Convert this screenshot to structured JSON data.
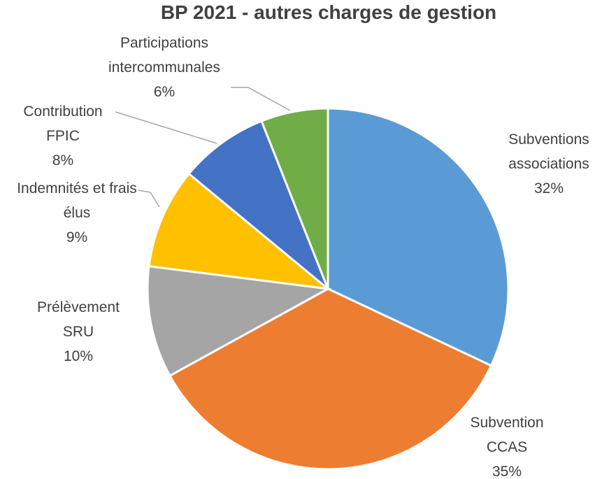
{
  "chart_data": {
    "type": "pie",
    "title": "BP 2021 - autres charges de gestion",
    "categories": [
      "Subventions associations",
      "Subvention CCAS",
      "Prélèvement SRU",
      "Indemnités et frais élus",
      "Contribution FPIC",
      "Participations intercommunales"
    ],
    "values": [
      32,
      35,
      10,
      9,
      8,
      6
    ],
    "value_labels": [
      "32%",
      "35%",
      "10%",
      "9%",
      "8%",
      "6%"
    ],
    "colors": [
      "#5b9bd5",
      "#ed7d31",
      "#a5a5a5",
      "#ffc000",
      "#4472c4",
      "#70ad47"
    ]
  }
}
